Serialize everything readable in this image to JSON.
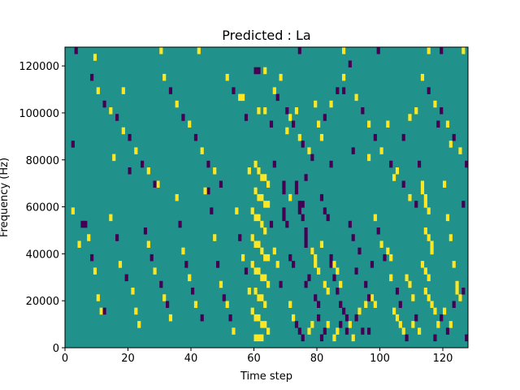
{
  "chart_data": {
    "type": "heatmap",
    "title": "Predicted : La",
    "xlabel": "Time step",
    "ylabel": "Frequency (Hz)",
    "xlim": [
      0,
      128
    ],
    "ylim": [
      0,
      128000
    ],
    "x_ticks": [
      0,
      20,
      40,
      60,
      80,
      100,
      120
    ],
    "y_ticks": [
      0,
      20000,
      40000,
      60000,
      80000,
      100000,
      120000
    ],
    "grid": false,
    "colormap": "viridis",
    "value_range": [
      -1,
      1
    ],
    "colors": {
      "low": "#440154",
      "mid": "#21918c",
      "high": "#fde725"
    },
    "n_time_steps": 128,
    "n_freq_bins": 45,
    "freq_bin_width_hz": 2844,
    "background_value": 0,
    "cells": [
      [
        4,
        15,
        1
      ],
      [
        6,
        18,
        -1
      ],
      [
        11,
        5,
        1
      ],
      [
        9,
        43,
        1
      ],
      [
        3,
        44,
        -1
      ],
      [
        30,
        44,
        1
      ],
      [
        42,
        44,
        1
      ],
      [
        60,
        41,
        -1
      ],
      [
        61,
        41,
        -1
      ],
      [
        63,
        41,
        1
      ],
      [
        74,
        44,
        -1
      ],
      [
        88,
        44,
        1
      ],
      [
        99,
        44,
        -1
      ],
      [
        115,
        44,
        1
      ],
      [
        119,
        44,
        -1
      ],
      [
        126,
        44,
        1
      ],
      [
        18,
        38,
        1
      ],
      [
        56,
        37,
        1
      ],
      [
        61,
        35,
        1
      ],
      [
        63,
        35,
        1
      ],
      [
        65,
        33,
        -1
      ],
      [
        70,
        32,
        1
      ],
      [
        73,
        35,
        1
      ],
      [
        79,
        36,
        1
      ],
      [
        81,
        31,
        1
      ],
      [
        88,
        38,
        -1
      ],
      [
        102,
        33,
        1
      ],
      [
        107,
        31,
        -1
      ],
      [
        109,
        34,
        1
      ],
      [
        111,
        35,
        1
      ],
      [
        118,
        33,
        -1
      ],
      [
        122,
        30,
        1
      ],
      [
        2,
        30,
        -1
      ],
      [
        15,
        28,
        1
      ],
      [
        20,
        26,
        -1
      ],
      [
        29,
        24,
        1
      ],
      [
        45,
        23,
        -1
      ],
      [
        58,
        26,
        1
      ],
      [
        64,
        24,
        1
      ],
      [
        66,
        27,
        -1
      ],
      [
        71,
        22,
        1
      ],
      [
        76,
        25,
        -1
      ],
      [
        84,
        27,
        -1
      ],
      [
        91,
        29,
        -1
      ],
      [
        96,
        28,
        1
      ],
      [
        104,
        25,
        1
      ],
      [
        112,
        27,
        -1
      ],
      [
        120,
        24,
        1
      ],
      [
        126,
        21,
        -1
      ],
      [
        60,
        27,
        1
      ],
      [
        61,
        26,
        1
      ],
      [
        62,
        25,
        1
      ],
      [
        63,
        25,
        1
      ],
      [
        60,
        23,
        1
      ],
      [
        61,
        22,
        1
      ],
      [
        62,
        22,
        1
      ],
      [
        63,
        21,
        1
      ],
      [
        64,
        21,
        1
      ],
      [
        59,
        20,
        1
      ],
      [
        60,
        19,
        1
      ],
      [
        61,
        19,
        1
      ],
      [
        62,
        18,
        1
      ],
      [
        63,
        17,
        1
      ],
      [
        59,
        16,
        1
      ],
      [
        60,
        15,
        1
      ],
      [
        61,
        15,
        1
      ],
      [
        62,
        14,
        1
      ],
      [
        63,
        13,
        1
      ],
      [
        64,
        13,
        1
      ],
      [
        59,
        12,
        1
      ],
      [
        60,
        11,
        1
      ],
      [
        61,
        11,
        1
      ],
      [
        62,
        10,
        1
      ],
      [
        63,
        10,
        1
      ],
      [
        64,
        9,
        1
      ],
      [
        60,
        8,
        1
      ],
      [
        61,
        7,
        1
      ],
      [
        62,
        7,
        1
      ],
      [
        63,
        6,
        1
      ],
      [
        59,
        5,
        1
      ],
      [
        60,
        4,
        1
      ],
      [
        61,
        4,
        1
      ],
      [
        62,
        3,
        1
      ],
      [
        63,
        3,
        1
      ],
      [
        64,
        2,
        1
      ],
      [
        60,
        1,
        1
      ],
      [
        61,
        1,
        1
      ],
      [
        62,
        1,
        1
      ],
      [
        69,
        24,
        -1
      ],
      [
        69,
        23,
        -1
      ],
      [
        69,
        20,
        -1
      ],
      [
        69,
        19,
        -1
      ],
      [
        70,
        18,
        -1
      ],
      [
        71,
        13,
        -1
      ],
      [
        72,
        12,
        -1
      ],
      [
        73,
        24,
        -1
      ],
      [
        73,
        23,
        -1
      ],
      [
        74,
        21,
        -1
      ],
      [
        75,
        21,
        -1
      ],
      [
        74,
        20,
        -1
      ],
      [
        75,
        19,
        -1
      ],
      [
        76,
        17,
        -1
      ],
      [
        76,
        16,
        -1
      ],
      [
        76,
        15,
        -1
      ],
      [
        78,
        14,
        -1
      ],
      [
        77,
        10,
        -1
      ],
      [
        76,
        9,
        -1
      ],
      [
        79,
        7,
        -1
      ],
      [
        80,
        6,
        -1
      ],
      [
        81,
        22,
        -1
      ],
      [
        82,
        20,
        -1
      ],
      [
        83,
        19,
        -1
      ],
      [
        84,
        13,
        -1
      ],
      [
        84,
        12,
        -1
      ],
      [
        85,
        10,
        -1
      ],
      [
        86,
        8,
        -1
      ],
      [
        87,
        6,
        -1
      ],
      [
        88,
        5,
        -1
      ],
      [
        89,
        4,
        -1
      ],
      [
        90,
        18,
        -1
      ],
      [
        91,
        16,
        -1
      ],
      [
        92,
        11,
        -1
      ],
      [
        93,
        14,
        -1
      ],
      [
        95,
        9,
        -1
      ],
      [
        96,
        2,
        -1
      ],
      [
        97,
        12,
        -1
      ],
      [
        78,
        14,
        1
      ],
      [
        79,
        13,
        1
      ],
      [
        79,
        12,
        1
      ],
      [
        80,
        11,
        1
      ],
      [
        81,
        15,
        1
      ],
      [
        82,
        9,
        1
      ],
      [
        83,
        8,
        1
      ],
      [
        85,
        12,
        1
      ],
      [
        86,
        11,
        1
      ],
      [
        87,
        9,
        1
      ],
      [
        97,
        7,
        1
      ],
      [
        98,
        6,
        1
      ],
      [
        102,
        14,
        1
      ],
      [
        103,
        13,
        1
      ],
      [
        104,
        5,
        1
      ],
      [
        105,
        4,
        1
      ],
      [
        106,
        3,
        1
      ],
      [
        108,
        10,
        1
      ],
      [
        109,
        9,
        1
      ],
      [
        110,
        7,
        1
      ],
      [
        113,
        24,
        1
      ],
      [
        113,
        23,
        1
      ],
      [
        114,
        22,
        1
      ],
      [
        114,
        21,
        1
      ],
      [
        115,
        20,
        1
      ],
      [
        114,
        17,
        1
      ],
      [
        115,
        16,
        1
      ],
      [
        116,
        15,
        1
      ],
      [
        116,
        14,
        1
      ],
      [
        113,
        12,
        1
      ],
      [
        114,
        11,
        1
      ],
      [
        115,
        10,
        1
      ],
      [
        114,
        8,
        1
      ],
      [
        115,
        7,
        1
      ],
      [
        116,
        6,
        1
      ],
      [
        117,
        5,
        1
      ],
      [
        121,
        19,
        1
      ],
      [
        122,
        16,
        1
      ],
      [
        123,
        12,
        1
      ],
      [
        124,
        9,
        1
      ],
      [
        124,
        8,
        1
      ],
      [
        2,
        20,
        1
      ],
      [
        5,
        18,
        -1
      ],
      [
        7,
        16,
        1
      ],
      [
        8,
        13,
        -1
      ],
      [
        9,
        11,
        1
      ],
      [
        10,
        7,
        1
      ],
      [
        12,
        5,
        -1
      ],
      [
        14,
        19,
        1
      ],
      [
        16,
        16,
        -1
      ],
      [
        17,
        12,
        1
      ],
      [
        19,
        10,
        -1
      ],
      [
        21,
        8,
        1
      ],
      [
        22,
        5,
        1
      ],
      [
        23,
        3,
        1
      ],
      [
        25,
        17,
        -1
      ],
      [
        26,
        15,
        1
      ],
      [
        27,
        13,
        -1
      ],
      [
        28,
        11,
        1
      ],
      [
        30,
        9,
        -1
      ],
      [
        31,
        7,
        1
      ],
      [
        32,
        6,
        -1
      ],
      [
        33,
        4,
        1
      ],
      [
        35,
        22,
        1
      ],
      [
        36,
        18,
        -1
      ],
      [
        37,
        14,
        1
      ],
      [
        38,
        12,
        -1
      ],
      [
        39,
        10,
        1
      ],
      [
        40,
        8,
        -1
      ],
      [
        41,
        6,
        1
      ],
      [
        43,
        4,
        -1
      ],
      [
        44,
        23,
        1
      ],
      [
        46,
        20,
        -1
      ],
      [
        47,
        16,
        1
      ],
      [
        48,
        12,
        -1
      ],
      [
        49,
        9,
        1
      ],
      [
        50,
        7,
        -1
      ],
      [
        51,
        6,
        1
      ],
      [
        52,
        4,
        -1
      ],
      [
        53,
        2,
        1
      ],
      [
        54,
        20,
        1
      ],
      [
        55,
        16,
        -1
      ],
      [
        56,
        13,
        1
      ],
      [
        57,
        11,
        -1
      ],
      [
        58,
        8,
        1
      ],
      [
        65,
        18,
        -1
      ],
      [
        66,
        14,
        1
      ],
      [
        67,
        12,
        1
      ],
      [
        68,
        9,
        -1
      ],
      [
        71,
        6,
        1
      ],
      [
        72,
        4,
        1
      ],
      [
        73,
        3,
        -1
      ],
      [
        74,
        2,
        -1
      ],
      [
        75,
        1,
        -1
      ],
      [
        77,
        2,
        1
      ],
      [
        78,
        3,
        1
      ],
      [
        80,
        4,
        -1
      ],
      [
        81,
        1,
        -1
      ],
      [
        82,
        2,
        -1
      ],
      [
        83,
        3,
        1
      ],
      [
        85,
        1,
        1
      ],
      [
        86,
        2,
        1
      ],
      [
        87,
        3,
        -1
      ],
      [
        89,
        2,
        -1
      ],
      [
        90,
        3,
        1
      ],
      [
        91,
        1,
        1
      ],
      [
        92,
        4,
        -1
      ],
      [
        93,
        5,
        1
      ],
      [
        94,
        2,
        -1
      ],
      [
        95,
        6,
        1
      ],
      [
        96,
        7,
        -1
      ],
      [
        98,
        19,
        1
      ],
      [
        99,
        17,
        -1
      ],
      [
        100,
        15,
        1
      ],
      [
        101,
        13,
        -1
      ],
      [
        103,
        10,
        1
      ],
      [
        105,
        8,
        -1
      ],
      [
        106,
        6,
        -1
      ],
      [
        107,
        2,
        1
      ],
      [
        108,
        1,
        -1
      ],
      [
        110,
        3,
        1
      ],
      [
        111,
        4,
        -1
      ],
      [
        112,
        2,
        1
      ],
      [
        117,
        1,
        -1
      ],
      [
        118,
        3,
        1
      ],
      [
        119,
        4,
        -1
      ],
      [
        120,
        5,
        1
      ],
      [
        121,
        2,
        -1
      ],
      [
        122,
        3,
        1
      ],
      [
        123,
        6,
        -1
      ],
      [
        125,
        7,
        1
      ],
      [
        126,
        8,
        -1
      ],
      [
        127,
        1,
        -1
      ],
      [
        8,
        40,
        -1
      ],
      [
        10,
        38,
        1
      ],
      [
        12,
        36,
        -1
      ],
      [
        14,
        35,
        1
      ],
      [
        16,
        34,
        -1
      ],
      [
        18,
        32,
        1
      ],
      [
        20,
        31,
        -1
      ],
      [
        22,
        29,
        1
      ],
      [
        24,
        27,
        -1
      ],
      [
        26,
        26,
        1
      ],
      [
        28,
        24,
        -1
      ],
      [
        31,
        40,
        1
      ],
      [
        33,
        38,
        -1
      ],
      [
        35,
        36,
        1
      ],
      [
        37,
        34,
        -1
      ],
      [
        39,
        33,
        1
      ],
      [
        41,
        31,
        -1
      ],
      [
        43,
        29,
        1
      ],
      [
        45,
        27,
        -1
      ],
      [
        47,
        26,
        1
      ],
      [
        49,
        24,
        -1
      ],
      [
        51,
        40,
        1
      ],
      [
        53,
        38,
        -1
      ],
      [
        55,
        37,
        1
      ],
      [
        57,
        34,
        -1
      ],
      [
        66,
        38,
        1
      ],
      [
        67,
        37,
        -1
      ],
      [
        68,
        40,
        1
      ],
      [
        70,
        35,
        -1
      ],
      [
        71,
        34,
        1
      ],
      [
        72,
        33,
        -1
      ],
      [
        74,
        31,
        1
      ],
      [
        75,
        30,
        -1
      ],
      [
        77,
        29,
        1
      ],
      [
        78,
        28,
        -1
      ],
      [
        80,
        33,
        1
      ],
      [
        82,
        34,
        -1
      ],
      [
        84,
        36,
        1
      ],
      [
        86,
        38,
        -1
      ],
      [
        88,
        40,
        1
      ],
      [
        90,
        42,
        -1
      ],
      [
        92,
        37,
        1
      ],
      [
        94,
        35,
        -1
      ],
      [
        96,
        33,
        1
      ],
      [
        98,
        31,
        -1
      ],
      [
        100,
        29,
        1
      ],
      [
        103,
        27,
        -1
      ],
      [
        105,
        26,
        1
      ],
      [
        107,
        24,
        -1
      ],
      [
        109,
        22,
        1
      ],
      [
        111,
        21,
        -1
      ],
      [
        113,
        40,
        1
      ],
      [
        115,
        38,
        -1
      ],
      [
        117,
        36,
        1
      ],
      [
        119,
        35,
        -1
      ],
      [
        121,
        33,
        1
      ],
      [
        123,
        31,
        -1
      ],
      [
        125,
        29,
        1
      ],
      [
        127,
        27,
        -1
      ]
    ]
  }
}
